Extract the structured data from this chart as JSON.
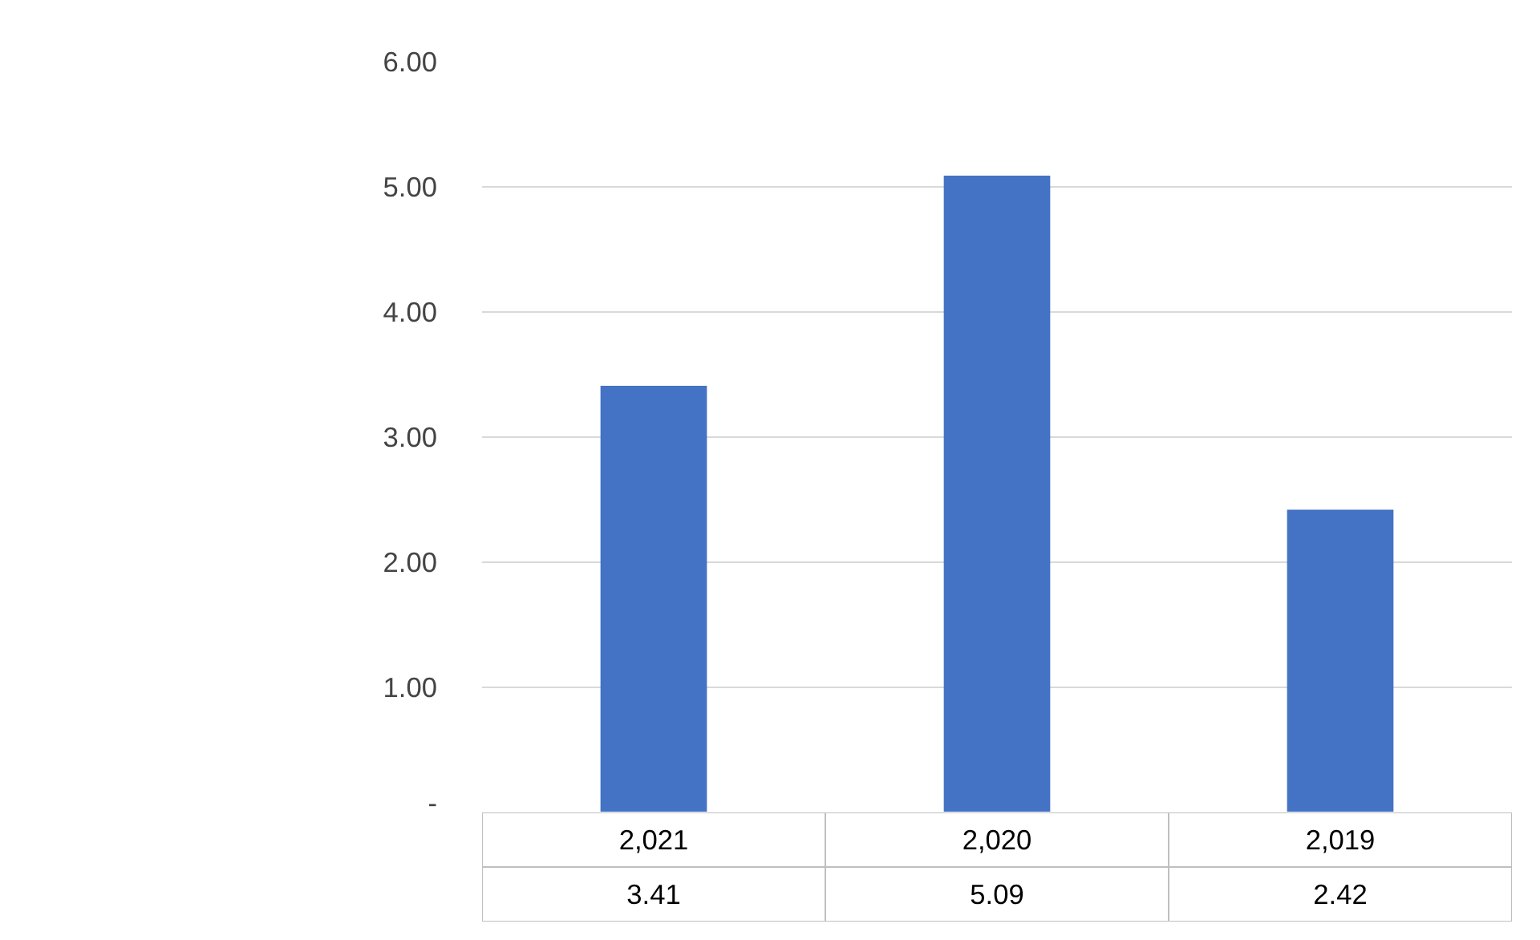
{
  "chart_data": {
    "type": "bar",
    "categories": [
      "2,021",
      "2,020",
      "2,019"
    ],
    "series": [
      {
        "color": "#4472c4",
        "values": [
          3.41,
          5.09,
          2.42
        ]
      }
    ],
    "ylim": [
      0,
      6
    ],
    "yticks": [
      {
        "value": 0,
        "label": "-"
      },
      {
        "value": 1,
        "label": "1.00"
      },
      {
        "value": 2,
        "label": "2.00"
      },
      {
        "value": 3,
        "label": "3.00"
      },
      {
        "value": 4,
        "label": "4.00"
      },
      {
        "value": 5,
        "label": "5.00"
      },
      {
        "value": 6,
        "label": "6.00"
      }
    ],
    "grid": "y",
    "data_labels": true
  }
}
